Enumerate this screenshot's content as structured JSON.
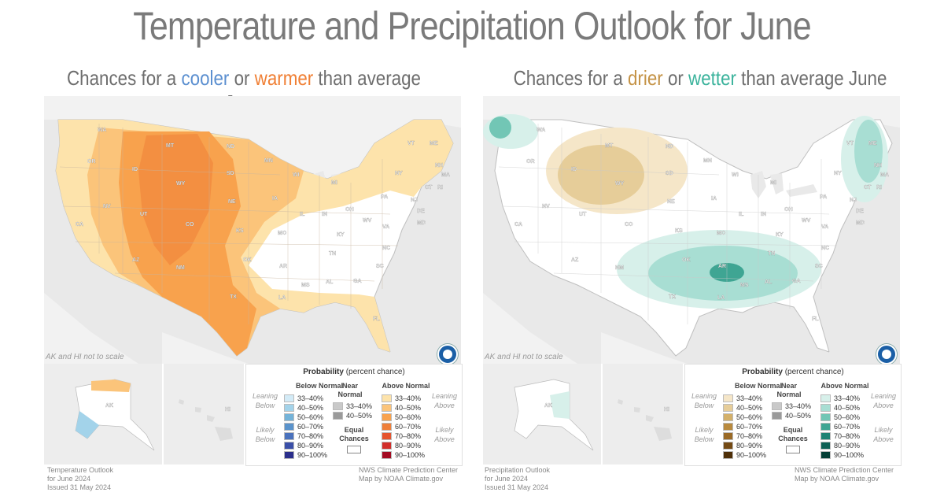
{
  "title": "Temperature and Precipitation Outlook for June",
  "left": {
    "subtitle_pre": "Chances for a ",
    "subtitle_word1": "cooler",
    "subtitle_mid": " or ",
    "subtitle_word2": "warmer",
    "subtitle_post": " than average June",
    "word1_color": "#5b8fd0",
    "word2_color": "#f07f34",
    "scale_note": "AK and HI not to scale",
    "states": [
      "WA",
      "OR",
      "ID",
      "MT",
      "WY",
      "ND",
      "SD",
      "NE",
      "MN",
      "WI",
      "MI",
      "IA",
      "IL",
      "IN",
      "OH",
      "PA",
      "NY",
      "VT",
      "ME",
      "NH",
      "MA",
      "CT",
      "RI",
      "NJ",
      "DE",
      "MD",
      "CA",
      "NV",
      "UT",
      "CO",
      "AZ",
      "NM",
      "KS",
      "MO",
      "KY",
      "WV",
      "VA",
      "OK",
      "TX",
      "AR",
      "TN",
      "NC",
      "SC",
      "MS",
      "AL",
      "GA",
      "LA",
      "FL",
      "AK",
      "HI"
    ],
    "legend": {
      "title_bold": "Probability",
      "title_rest": " (percent chance)",
      "below_header": "Below Normal",
      "near_header": "Near Normal",
      "above_header": "Above Normal",
      "leaning_below": "Leaning Below",
      "likely_below": "Likely Below",
      "leaning_above": "Leaning Above",
      "likely_above": "Likely Above",
      "equal_chances": "Equal Chances",
      "below": [
        {
          "label": "33–40%",
          "color": "#d3ebf7"
        },
        {
          "label": "40–50%",
          "color": "#a3d3ea"
        },
        {
          "label": "50–60%",
          "color": "#74b3d9"
        },
        {
          "label": "60–70%",
          "color": "#5a93cc"
        },
        {
          "label": "70–80%",
          "color": "#4a72bd"
        },
        {
          "label": "80–90%",
          "color": "#3a4fa8"
        },
        {
          "label": "90–100%",
          "color": "#2b2f8c"
        }
      ],
      "near": [
        {
          "label": "33–40%",
          "color": "#c9c9c9"
        },
        {
          "label": "40–50%",
          "color": "#9a9a9a"
        }
      ],
      "above": [
        {
          "label": "33–40%",
          "color": "#fde3ab"
        },
        {
          "label": "40–50%",
          "color": "#fbc47a"
        },
        {
          "label": "50–60%",
          "color": "#f8a24d"
        },
        {
          "label": "60–70%",
          "color": "#ef7f39"
        },
        {
          "label": "70–80%",
          "color": "#e5542f"
        },
        {
          "label": "80–90%",
          "color": "#d22e2a"
        },
        {
          "label": "90–100%",
          "color": "#a40b22"
        }
      ]
    },
    "footer_left": [
      "Temperature Outlook",
      "for June 2024",
      "Issued 31 May 2024"
    ],
    "footer_right": [
      "NWS Climate Prediction Center",
      "Map by NOAA Climate.gov"
    ]
  },
  "right": {
    "subtitle_pre": "Chances for a ",
    "subtitle_word1": "drier",
    "subtitle_mid": " or ",
    "subtitle_word2": "wetter",
    "subtitle_post": " than average June",
    "word1_color": "#c49245",
    "word2_color": "#3bb39c",
    "scale_note": "AK and HI not to scale",
    "legend": {
      "title_bold": "Probability",
      "title_rest": " (percent chance)",
      "below_header": "Below Normal",
      "near_header": "Near Normal",
      "above_header": "Above Normal",
      "leaning_below": "Leaning Below",
      "likely_below": "Likely Below",
      "leaning_above": "Leaning Above",
      "likely_above": "Likely Above",
      "equal_chances": "Equal Chances",
      "below": [
        {
          "label": "33–40%",
          "color": "#f5e6c8"
        },
        {
          "label": "40–50%",
          "color": "#e6cd99"
        },
        {
          "label": "50–60%",
          "color": "#d3b06a"
        },
        {
          "label": "60–70%",
          "color": "#b98a3e"
        },
        {
          "label": "70–80%",
          "color": "#9a6a26"
        },
        {
          "label": "80–90%",
          "color": "#744a14"
        },
        {
          "label": "90–100%",
          "color": "#4f2f08"
        }
      ],
      "near": [
        {
          "label": "33–40%",
          "color": "#c9c9c9"
        },
        {
          "label": "40–50%",
          "color": "#9a9a9a"
        }
      ],
      "above": [
        {
          "label": "33–40%",
          "color": "#d7f0ea"
        },
        {
          "label": "40–50%",
          "color": "#a8ded3"
        },
        {
          "label": "50–60%",
          "color": "#72c6b5"
        },
        {
          "label": "60–70%",
          "color": "#3fa593"
        },
        {
          "label": "70–80%",
          "color": "#1f8273"
        },
        {
          "label": "80–90%",
          "color": "#0d6155"
        },
        {
          "label": "90–100%",
          "color": "#043f36"
        }
      ]
    },
    "footer_left": [
      "Precipitation Outlook",
      "for June 2024",
      "Issued 31 May 2024"
    ],
    "footer_right": [
      "NWS Climate Prediction Center",
      "Map by NOAA Climate.gov"
    ]
  }
}
